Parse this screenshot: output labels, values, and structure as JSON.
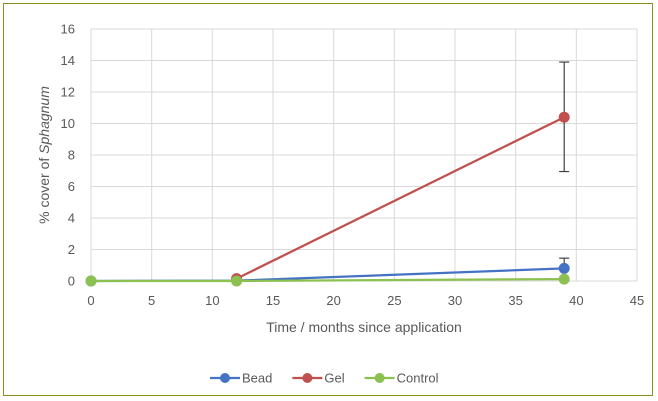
{
  "chart_data": {
    "type": "line",
    "title": "",
    "xlabel": "Time / months since application",
    "ylabel_prefix": "% cover of ",
    "ylabel_italic": "Sphagnum",
    "xlim": [
      0,
      45
    ],
    "ylim": [
      0,
      16
    ],
    "xticks": [
      0,
      5,
      10,
      15,
      20,
      25,
      30,
      35,
      40,
      45
    ],
    "yticks": [
      0,
      2,
      4,
      6,
      8,
      10,
      12,
      14,
      16
    ],
    "grid": true,
    "legend_position": "bottom",
    "series": [
      {
        "name": "Bead",
        "color": "#4472c4",
        "x": [
          0,
          12,
          39
        ],
        "y": [
          0,
          0.02,
          0.8
        ],
        "error_bars": [
          null,
          null,
          [
            0,
            1.45
          ]
        ]
      },
      {
        "name": "Gel",
        "color": "#c0504d",
        "x": [
          12,
          39
        ],
        "y": [
          0.15,
          10.4
        ],
        "error_bars": [
          null,
          [
            6.95,
            13.9
          ]
        ]
      },
      {
        "name": "Control",
        "color": "#8cc152",
        "x": [
          0,
          12,
          39
        ],
        "y": [
          0,
          0,
          0.12
        ],
        "error_bars": [
          null,
          null,
          null
        ]
      }
    ]
  }
}
